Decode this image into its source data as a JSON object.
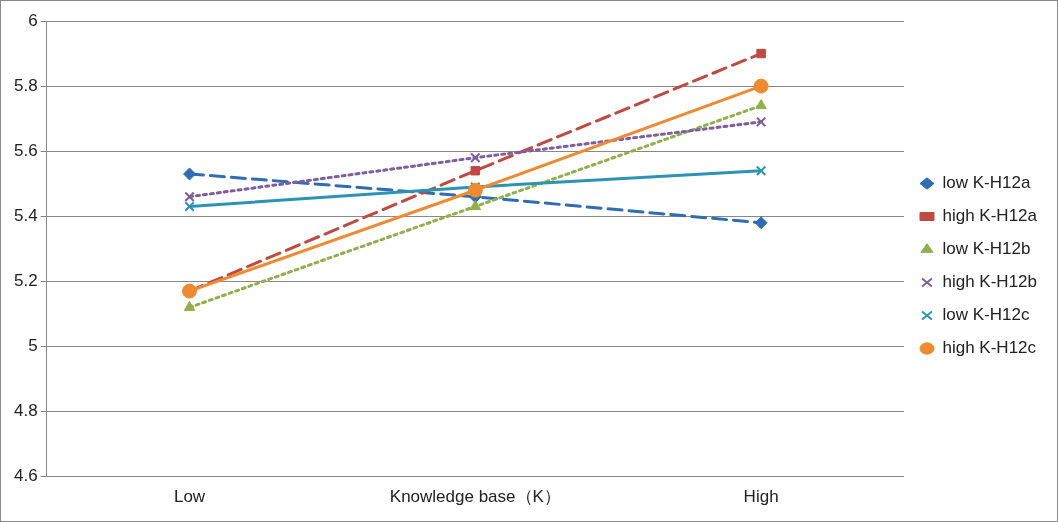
{
  "chart_data": {
    "type": "line",
    "categories": [
      "Low",
      "Knowledge base（K）",
      "High"
    ],
    "series": [
      {
        "name": "low K-H12a",
        "color": "#2e6db4",
        "values": [
          5.53,
          5.46,
          5.38
        ],
        "marker": "diamond",
        "line_style": "dashed"
      },
      {
        "name": "high K-H12a",
        "color": "#bf4a40",
        "values": [
          5.17,
          5.54,
          5.9
        ],
        "marker": "square",
        "line_style": "dashed"
      },
      {
        "name": "low K-H12b",
        "color": "#8fb04a",
        "values": [
          5.12,
          5.43,
          5.74
        ],
        "marker": "triangle",
        "line_style": "dotted"
      },
      {
        "name": "high K-H12b",
        "color": "#7d5ea0",
        "values": [
          5.46,
          5.58,
          5.69
        ],
        "marker": "cross",
        "line_style": "dotted"
      },
      {
        "name": "low K-H12c",
        "color": "#2b93b3",
        "values": [
          5.43,
          5.49,
          5.54
        ],
        "marker": "cross",
        "line_style": "solid"
      },
      {
        "name": "high K-H12c",
        "color": "#f08a30",
        "values": [
          5.17,
          5.48,
          5.8
        ],
        "marker": "circle",
        "line_style": "solid"
      }
    ],
    "ylim": [
      4.6,
      6
    ],
    "yticks": [
      4.6,
      4.8,
      5,
      5.2,
      5.4,
      5.6,
      5.8,
      6
    ],
    "grid": "y",
    "legend": "right"
  }
}
